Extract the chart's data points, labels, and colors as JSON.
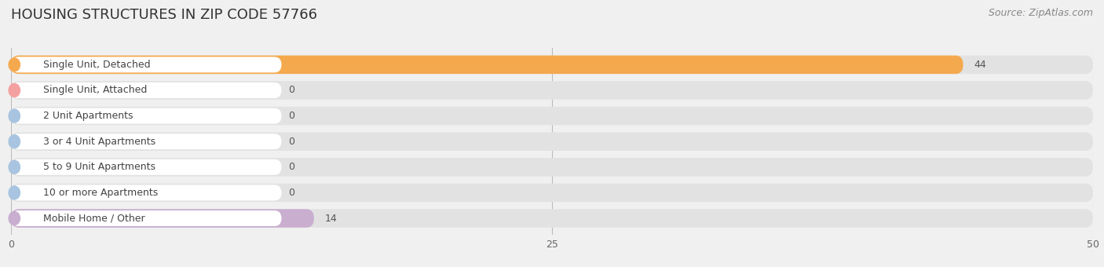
{
  "title": "HOUSING STRUCTURES IN ZIP CODE 57766",
  "source": "Source: ZipAtlas.com",
  "categories": [
    "Single Unit, Detached",
    "Single Unit, Attached",
    "2 Unit Apartments",
    "3 or 4 Unit Apartments",
    "5 to 9 Unit Apartments",
    "10 or more Apartments",
    "Mobile Home / Other"
  ],
  "values": [
    44,
    0,
    0,
    0,
    0,
    0,
    14
  ],
  "bar_colors": [
    "#f5a94e",
    "#f4a0a0",
    "#a8c4e0",
    "#a8c4e0",
    "#a8c4e0",
    "#a8c4e0",
    "#c9aed0"
  ],
  "xlim": [
    0,
    50
  ],
  "xticks": [
    0,
    25,
    50
  ],
  "background_color": "#f0f0f0",
  "bar_background_color": "#e2e2e2",
  "label_box_color": "#ffffff",
  "title_fontsize": 13,
  "source_fontsize": 9,
  "label_fontsize": 9,
  "value_fontsize": 9
}
